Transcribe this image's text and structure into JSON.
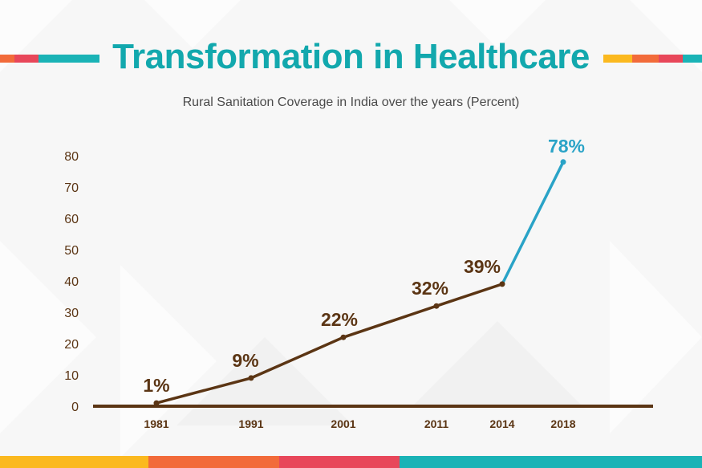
{
  "header": {
    "title": "Transformation in Healthcare",
    "subtitle": "Rural Sanitation Coverage in India over the years (Percent)"
  },
  "colors": {
    "title": "#12a8ad",
    "brown": "#5b3514",
    "highlight": "#2aa3c7",
    "orange": "#f26b3a",
    "red": "#e8475a",
    "teal": "#1ab3b6",
    "yellow": "#fbb91f"
  },
  "chart_data": {
    "type": "line",
    "x": [
      "1981",
      "1991",
      "2001",
      "2011",
      "2014",
      "2018"
    ],
    "values": [
      1,
      9,
      22,
      32,
      39,
      78
    ],
    "data_labels": [
      "1%",
      "9%",
      "22%",
      "32%",
      "39%",
      "78%"
    ],
    "highlight_last_segment": true,
    "yticks": [
      0,
      10,
      20,
      30,
      40,
      50,
      60,
      70,
      80
    ],
    "ylim": [
      0,
      80
    ],
    "grid": false
  }
}
